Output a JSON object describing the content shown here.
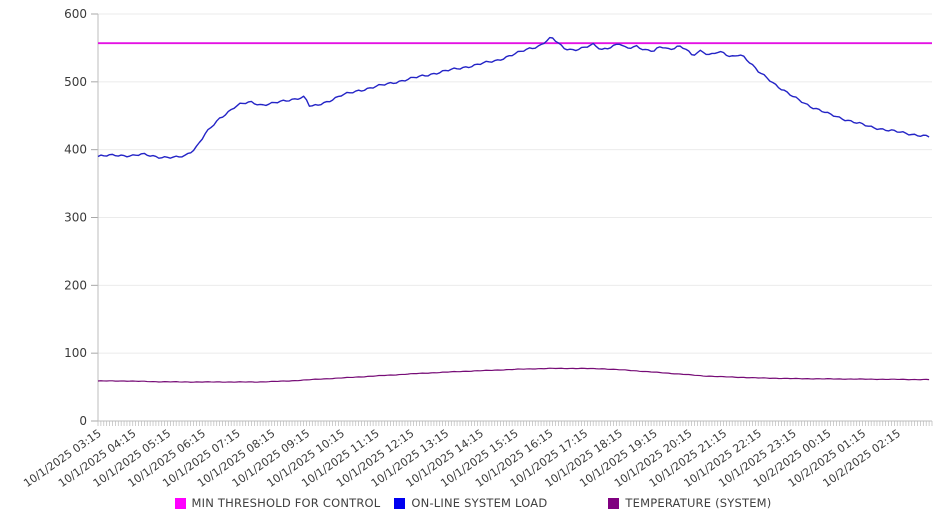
{
  "chart_data": {
    "type": "line",
    "title": "",
    "x_axis": {
      "labels": [
        "10/1/2025 03:15",
        "10/1/2025 04:15",
        "10/1/2025 05:15",
        "10/1/2025 06:15",
        "10/1/2025 07:15",
        "10/1/2025 08:15",
        "10/1/2025 09:15",
        "10/1/2025 10:15",
        "10/1/2025 11:15",
        "10/1/2025 12:15",
        "10/1/2025 13:15",
        "10/1/2025 14:15",
        "10/1/2025 15:15",
        "10/1/2025 16:15",
        "10/1/2025 17:15",
        "10/1/2025 18:15",
        "10/1/2025 19:15",
        "10/1/2025 20:15",
        "10/1/2025 21:15",
        "10/1/2025 22:15",
        "10/1/2025 23:15",
        "10/2/2025 00:15",
        "10/2/2025 01:15",
        "10/2/2025 02:15"
      ],
      "hours_span": 24,
      "minor_ticks": 288,
      "tick_interval_minutes": 5
    },
    "y_axis": {
      "min": 0,
      "max": 600,
      "ticks": [
        0,
        100,
        200,
        300,
        400,
        500,
        600
      ]
    },
    "grid_color": "#ebebeb",
    "axis_color": "#bdbdbd",
    "tick_color": "#a8a8a8",
    "label_color": "#3a3a3a",
    "legend_position": "bottom",
    "series": [
      {
        "name": "MIN THRESHOLD FOR CONTROL",
        "color": "#E411E4",
        "swatch_color": "#FF00FF",
        "kind": "threshold",
        "value": 557,
        "width": 1.8,
        "jitter": 0
      },
      {
        "name": "ON-LINE SYSTEM LOAD",
        "color": "#2424C6",
        "swatch_color": "#0000F0",
        "kind": "line",
        "width": 1.4,
        "jitter": 1.3,
        "points": [
          [
            0,
            390
          ],
          [
            0.5,
            392
          ],
          [
            1.0,
            391
          ],
          [
            1.3,
            393
          ],
          [
            1.8,
            389
          ],
          [
            2.2,
            388
          ],
          [
            2.5,
            391
          ],
          [
            2.8,
            402
          ],
          [
            3.1,
            424
          ],
          [
            3.5,
            446
          ],
          [
            3.9,
            462
          ],
          [
            4.1,
            467
          ],
          [
            4.4,
            470
          ],
          [
            4.7,
            466
          ],
          [
            5.0,
            468
          ],
          [
            5.4,
            472
          ],
          [
            5.75,
            476
          ],
          [
            5.95,
            478
          ],
          [
            6.1,
            463
          ],
          [
            6.3,
            465
          ],
          [
            6.6,
            471
          ],
          [
            7.0,
            480
          ],
          [
            7.5,
            487
          ],
          [
            8.0,
            493
          ],
          [
            8.6,
            500
          ],
          [
            9.2,
            507
          ],
          [
            10.0,
            516
          ],
          [
            10.8,
            524
          ],
          [
            11.5,
            532
          ],
          [
            12.0,
            541
          ],
          [
            12.4,
            549
          ],
          [
            12.7,
            553
          ],
          [
            12.9,
            560
          ],
          [
            13.05,
            565
          ],
          [
            13.2,
            559
          ],
          [
            13.4,
            550
          ],
          [
            13.7,
            547
          ],
          [
            14.0,
            550
          ],
          [
            14.25,
            555
          ],
          [
            14.5,
            548
          ],
          [
            14.8,
            552
          ],
          [
            15.0,
            556
          ],
          [
            15.2,
            549
          ],
          [
            15.5,
            553
          ],
          [
            15.75,
            547
          ],
          [
            16.0,
            545
          ],
          [
            16.2,
            552
          ],
          [
            16.45,
            548
          ],
          [
            16.7,
            553
          ],
          [
            16.9,
            549
          ],
          [
            17.1,
            538
          ],
          [
            17.35,
            546
          ],
          [
            17.6,
            540
          ],
          [
            17.8,
            544
          ],
          [
            18.0,
            542
          ],
          [
            18.2,
            536
          ],
          [
            18.45,
            541
          ],
          [
            18.6,
            537
          ],
          [
            19.0,
            515
          ],
          [
            19.3,
            504
          ],
          [
            19.6,
            492
          ],
          [
            20.0,
            478
          ],
          [
            20.5,
            464
          ],
          [
            21.0,
            453
          ],
          [
            21.6,
            443
          ],
          [
            22.2,
            434
          ],
          [
            22.8,
            428
          ],
          [
            23.4,
            423
          ],
          [
            23.92,
            419
          ]
        ]
      },
      {
        "name": "TEMPERATURE (SYSTEM)",
        "color": "#760B76",
        "swatch_color": "#800080",
        "kind": "line",
        "width": 1.2,
        "jitter": 0.25,
        "points": [
          [
            0,
            59
          ],
          [
            0.8,
            59
          ],
          [
            1.6,
            58
          ],
          [
            2.5,
            57.5
          ],
          [
            4.6,
            57.5
          ],
          [
            5.5,
            59
          ],
          [
            6.3,
            61.5
          ],
          [
            7.2,
            64
          ],
          [
            8.2,
            67
          ],
          [
            9.2,
            70
          ],
          [
            10.2,
            72.5
          ],
          [
            11.2,
            74.5
          ],
          [
            12.2,
            76.5
          ],
          [
            13.0,
            77.5
          ],
          [
            13.8,
            77.5
          ],
          [
            14.5,
            77
          ],
          [
            15.2,
            75
          ],
          [
            16.0,
            72
          ],
          [
            16.8,
            69
          ],
          [
            17.4,
            66.5
          ],
          [
            18.1,
            65
          ],
          [
            19.0,
            63.5
          ],
          [
            20.0,
            62.5
          ],
          [
            21.2,
            62
          ],
          [
            22.5,
            61.5
          ],
          [
            23.92,
            61
          ]
        ]
      }
    ]
  }
}
